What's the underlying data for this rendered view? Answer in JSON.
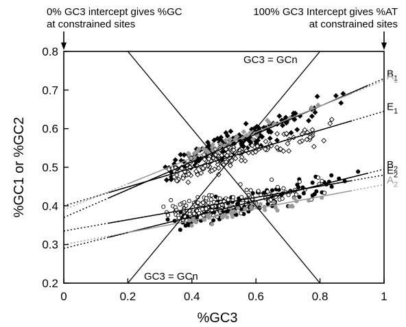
{
  "chart_data": {
    "type": "scatter",
    "xlabel": "%GC3",
    "ylabel": "%GC1 or %GC2",
    "xlim": [
      0,
      1
    ],
    "ylim": [
      0.2,
      0.8
    ],
    "grid": false,
    "x_ticks": [
      0,
      0.2,
      0.4,
      0.6,
      0.8,
      1
    ],
    "x_tick_labels": [
      "0",
      "0.2",
      "0.4",
      "0.6",
      "0.8",
      "1"
    ],
    "y_ticks": [
      0.2,
      0.3,
      0.4,
      0.5,
      0.6,
      0.7,
      0.8
    ],
    "y_tick_labels": [
      "0.2",
      "0.3",
      "0.4",
      "0.5",
      "0.6",
      "0.7",
      "0.8"
    ],
    "annotations": {
      "left_top": [
        "0% GC3 intercept gives %GC",
        "at constrained sites"
      ],
      "right_top": [
        "100% GC3 Intercept gives %AT",
        "at constrained sites"
      ],
      "gcn_upper": "GC3 = GCn",
      "gcn_lower": "GC3 = GCn"
    },
    "reference_lines": [
      {
        "label": "GC3 = GCn",
        "x": [
          0.2,
          0.8
        ],
        "y": [
          0.2,
          0.8
        ]
      },
      {
        "label": "GC3 = GCn",
        "x": [
          0.2,
          0.8
        ],
        "y": [
          0.8,
          0.2
        ]
      }
    ],
    "series": [
      {
        "name": "B1",
        "label_main": "B",
        "label_sub": "1",
        "color": "#000000",
        "marker": "filled-diamond",
        "x_range": [
          0.14,
          0.95
        ],
        "intercept": 0.37,
        "slope": 0.36
      },
      {
        "name": "A1",
        "label_main": "A",
        "label_sub": "1",
        "color": "#999999",
        "marker": "filled-diamond",
        "x_range": [
          0.2,
          0.9
        ],
        "intercept": 0.39,
        "slope": 0.335
      },
      {
        "name": "E1",
        "label_main": "E",
        "label_sub": "1",
        "color": "#000000",
        "marker": "open-diamond",
        "x_range": [
          0.14,
          0.9
        ],
        "intercept": 0.4,
        "slope": 0.245
      },
      {
        "name": "B2",
        "label_main": "B",
        "label_sub": "2",
        "color": "#000000",
        "marker": "filled-circle",
        "x_range": [
          0.14,
          0.95
        ],
        "intercept": 0.29,
        "slope": 0.205
      },
      {
        "name": "E2",
        "label_main": "E",
        "label_sub": "2",
        "color": "#000000",
        "marker": "open-circle",
        "x_range": [
          0.14,
          0.9
        ],
        "intercept": 0.335,
        "slope": 0.145
      },
      {
        "name": "A2",
        "label_main": "A",
        "label_sub": "2",
        "color": "#999999",
        "marker": "filled-circle",
        "x_range": [
          0.2,
          0.9
        ],
        "intercept": 0.3,
        "slope": 0.155
      }
    ],
    "arrow_x": [
      0,
      1
    ]
  }
}
